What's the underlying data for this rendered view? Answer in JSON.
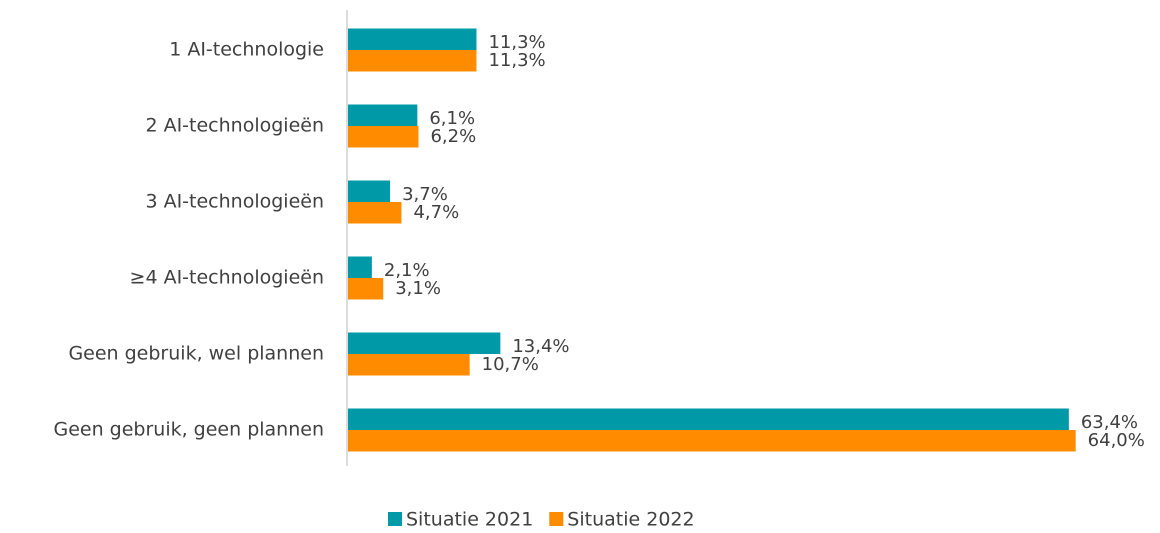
{
  "chart_data": {
    "type": "barh",
    "categories": [
      "1 AI-technologie",
      "2 AI-technologieën",
      "3 AI-technologieën",
      "≥4 AI-technologieën",
      "Geen gebruik, wel plannen",
      "Geen gebruik, geen plannen"
    ],
    "series": [
      {
        "name": "Situatie 2021",
        "color": "#0099a8",
        "values": [
          11.3,
          6.1,
          3.7,
          2.1,
          13.4,
          63.4
        ],
        "value_labels": [
          "11,3%",
          "6,1%",
          "3,7%",
          "2,1%",
          "13,4%",
          "63,4%"
        ]
      },
      {
        "name": "Situatie 2022",
        "color": "#ff8c00",
        "values": [
          11.3,
          6.2,
          4.7,
          3.1,
          10.7,
          64.0
        ],
        "value_labels": [
          "11,3%",
          "6,2%",
          "4,7%",
          "3,1%",
          "10,7%",
          "64,0%"
        ]
      }
    ],
    "xlim": [
      0,
      70
    ],
    "legend": "bottom"
  }
}
